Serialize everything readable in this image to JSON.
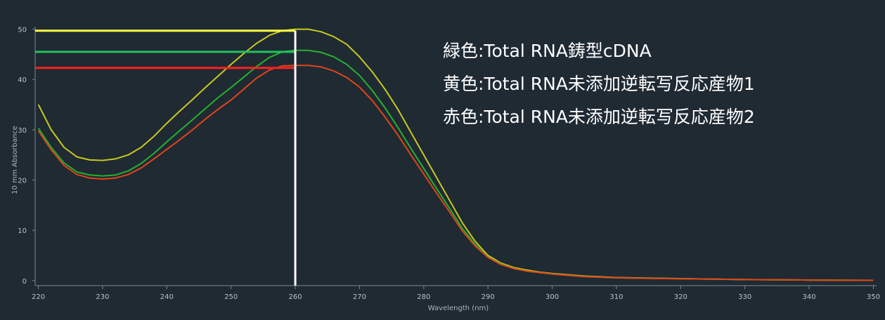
{
  "chart_data": {
    "type": "line",
    "xlabel": "Wavelength (nm)",
    "ylabel": "10 mm Absorbance",
    "xlim": [
      219.5,
      350.5
    ],
    "ylim": [
      -1,
      50.5
    ],
    "xticks": [
      220,
      230,
      240,
      250,
      260,
      270,
      280,
      290,
      300,
      310,
      320,
      330,
      340,
      350
    ],
    "yticks": [
      0,
      10,
      20,
      30,
      40,
      50
    ],
    "grid": false,
    "annotations": [
      "緑色:Total RNA鋳型cDNA",
      "黄色:Total RNA未添加逆転写反応産物1",
      "赤色:Total RNA未添加逆転写反応産物2"
    ],
    "series": [
      {
        "color": "#c8c81e",
        "x": [
          220,
          222,
          224,
          226,
          228,
          230,
          232,
          234,
          236,
          238,
          240,
          242,
          244,
          246,
          248,
          250,
          252,
          254,
          256,
          258,
          260,
          262,
          264,
          266,
          268,
          270,
          272,
          274,
          276,
          278,
          280,
          282,
          284,
          286,
          288,
          290,
          292,
          294,
          296,
          298,
          300,
          305,
          310,
          315,
          320,
          325,
          330,
          340,
          350
        ],
        "y": [
          35.0,
          30.0,
          26.5,
          24.6,
          24.0,
          23.9,
          24.2,
          25.0,
          26.5,
          28.7,
          31.3,
          33.7,
          36.0,
          38.4,
          40.7,
          43.0,
          45.2,
          47.2,
          48.8,
          49.7,
          50.0,
          50.0,
          49.5,
          48.5,
          47.0,
          44.5,
          41.5,
          38.0,
          34.0,
          29.5,
          25.0,
          20.5,
          16.0,
          11.5,
          7.8,
          5.0,
          3.5,
          2.6,
          2.1,
          1.7,
          1.4,
          0.9,
          0.6,
          0.5,
          0.4,
          0.3,
          0.2,
          0.1,
          0.05
        ]
      },
      {
        "color": "#26b02e",
        "x": [
          220,
          222,
          224,
          226,
          228,
          230,
          232,
          234,
          236,
          238,
          240,
          242,
          244,
          246,
          248,
          250,
          252,
          254,
          256,
          258,
          260,
          262,
          264,
          266,
          268,
          270,
          272,
          274,
          276,
          278,
          280,
          282,
          284,
          286,
          288,
          290,
          292,
          294,
          296,
          298,
          300,
          305,
          310,
          315,
          320,
          325,
          330,
          340,
          350
        ],
        "y": [
          30.3,
          26.5,
          23.4,
          21.6,
          21.0,
          20.8,
          21.0,
          21.8,
          23.3,
          25.3,
          27.6,
          29.8,
          32.0,
          34.2,
          36.4,
          38.4,
          40.5,
          42.6,
          44.4,
          45.5,
          45.8,
          45.8,
          45.4,
          44.5,
          43.0,
          40.8,
          37.8,
          34.3,
          30.4,
          26.3,
          22.3,
          18.3,
          14.4,
          10.4,
          7.2,
          4.7,
          3.3,
          2.4,
          1.9,
          1.6,
          1.3,
          0.8,
          0.55,
          0.45,
          0.35,
          0.3,
          0.2,
          0.1,
          0.05
        ]
      },
      {
        "color": "#e0441a",
        "x": [
          220,
          222,
          224,
          226,
          228,
          230,
          232,
          234,
          236,
          238,
          240,
          242,
          244,
          246,
          248,
          250,
          252,
          254,
          256,
          258,
          260,
          262,
          264,
          266,
          268,
          270,
          272,
          274,
          276,
          278,
          280,
          282,
          284,
          286,
          288,
          290,
          292,
          294,
          296,
          298,
          300,
          305,
          310,
          315,
          320,
          325,
          330,
          340,
          350
        ],
        "y": [
          29.8,
          26.0,
          22.9,
          21.1,
          20.4,
          20.2,
          20.4,
          21.1,
          22.4,
          24.2,
          26.1,
          28.0,
          30.0,
          32.1,
          34.1,
          35.9,
          38.1,
          40.3,
          41.9,
          42.7,
          42.8,
          42.8,
          42.5,
          41.7,
          40.4,
          38.5,
          35.8,
          32.5,
          28.9,
          25.0,
          21.2,
          17.4,
          13.7,
          9.9,
          6.9,
          4.6,
          3.2,
          2.4,
          1.9,
          1.6,
          1.3,
          0.8,
          0.55,
          0.45,
          0.35,
          0.3,
          0.2,
          0.1,
          0.05
        ]
      }
    ],
    "highlight_lines": [
      {
        "color": "#ffff44",
        "y": 49.7,
        "x_from": 219.5,
        "x_to": 260
      },
      {
        "color": "#22c25a",
        "y": 45.5,
        "x_from": 219.5,
        "x_to": 260
      },
      {
        "color": "#ff1f1f",
        "y": 42.3,
        "x_from": 219.5,
        "x_to": 260
      },
      {
        "color": "#ffffff",
        "x": 260,
        "y_from": 49.7,
        "y_to": -1
      }
    ]
  }
}
